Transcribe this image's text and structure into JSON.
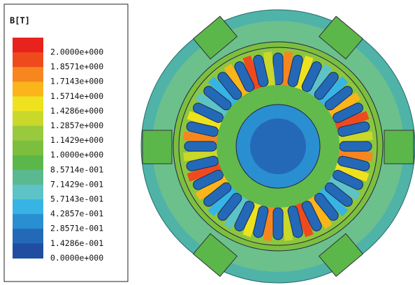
{
  "legend": {
    "title": "B[T]",
    "labels": [
      "2.0000e+000",
      "1.8571e+000",
      "1.7143e+000",
      "1.5714e+000",
      "1.4286e+000",
      "1.2857e+000",
      "1.1429e+000",
      "1.0000e+000",
      "8.5714e-001",
      "7.1429e-001",
      "5.7143e-001",
      "4.2857e-001",
      "2.8571e-001",
      "1.4286e-001",
      "0.0000e+000"
    ],
    "colors": [
      "#e8221c",
      "#ef4a1e",
      "#f7861e",
      "#fbb41a",
      "#eee21e",
      "#c9d82a",
      "#99c93c",
      "#7cbf3f",
      "#5cb74a",
      "#5bb98f",
      "#5dc3c6",
      "#37b4e3",
      "#2a8fd0",
      "#2469b7",
      "#1f4ea0"
    ]
  }
}
